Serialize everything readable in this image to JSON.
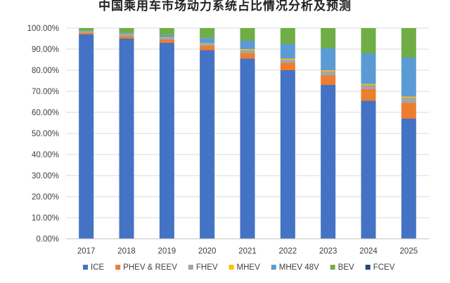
{
  "chart_data": {
    "type": "bar",
    "stacked": true,
    "title": "中国乘用车市场动力系统占比情况分析及预测",
    "categories": [
      "2017",
      "2018",
      "2019",
      "2020",
      "2021",
      "2022",
      "2023",
      "2024",
      "2025"
    ],
    "ylim": [
      0,
      100
    ],
    "yticks": [
      "0.00%",
      "10.00%",
      "20.00%",
      "30.00%",
      "40.00%",
      "50.00%",
      "60.00%",
      "70.00%",
      "80.00%",
      "90.00%",
      "100.00%"
    ],
    "grid": true,
    "legend_position": "bottom",
    "series": [
      {
        "name": "ICE",
        "color": "#4472C4",
        "values": [
          97.0,
          95.0,
          93.0,
          89.5,
          85.5,
          80.0,
          73.0,
          65.5,
          57.0
        ]
      },
      {
        "name": "PHEV & REEV",
        "color": "#ED7D31",
        "values": [
          0.8,
          1.0,
          1.5,
          2.0,
          2.5,
          3.5,
          4.5,
          5.5,
          7.5
        ]
      },
      {
        "name": "FHEV",
        "color": "#A5A5A5",
        "values": [
          0.5,
          1.0,
          1.0,
          1.0,
          1.5,
          1.5,
          2.0,
          2.0,
          2.5
        ]
      },
      {
        "name": "MHEV",
        "color": "#FFC000",
        "values": [
          0.1,
          0.2,
          0.2,
          0.3,
          0.5,
          0.5,
          0.5,
          0.5,
          0.5
        ]
      },
      {
        "name": "MHEV 48V",
        "color": "#5B9BD5",
        "values": [
          0.3,
          0.5,
          1.0,
          2.5,
          4.0,
          7.0,
          10.5,
          14.5,
          18.5
        ]
      },
      {
        "name": "BEV",
        "color": "#70AD47",
        "values": [
          1.3,
          2.3,
          3.3,
          4.7,
          6.0,
          7.5,
          9.5,
          12.0,
          14.0
        ]
      },
      {
        "name": "FCEV",
        "color": "#264478",
        "values": [
          0.0,
          0.0,
          0.0,
          0.0,
          0.0,
          0.0,
          0.0,
          0.0,
          0.0
        ]
      }
    ]
  }
}
